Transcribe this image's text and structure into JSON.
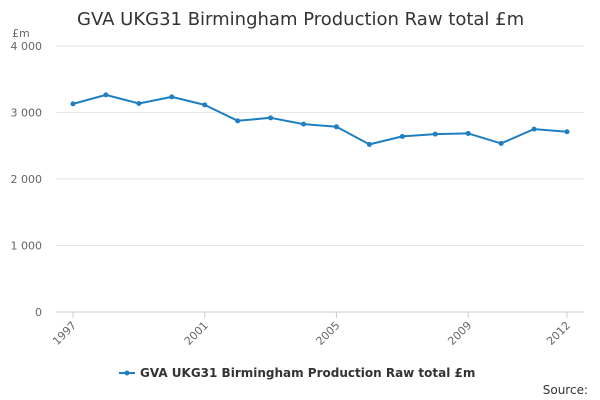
{
  "chart_data": {
    "type": "line",
    "title": "GVA UKG31 Birmingham Production Raw total £m",
    "unit_label": "£m",
    "xlabel": "",
    "ylabel": "£m",
    "ylim": [
      0,
      4000
    ],
    "yticks": [
      0,
      1000,
      2000,
      3000,
      4000
    ],
    "ytick_labels": [
      "0",
      "1 000",
      "2 000",
      "3 000",
      "4 000"
    ],
    "x": [
      1997,
      1998,
      1999,
      2000,
      2001,
      2002,
      2003,
      2004,
      2005,
      2006,
      2007,
      2008,
      2009,
      2010,
      2011,
      2012
    ],
    "xtick_labels": [
      "1997",
      "2001",
      "2005",
      "2009",
      "2012"
    ],
    "series": [
      {
        "name": "GVA UKG31 Birmingham Production Raw total £m",
        "color": "#1f7fc0",
        "values": [
          3130,
          3265,
          3135,
          3235,
          3115,
          2875,
          2920,
          2825,
          2785,
          2520,
          2640,
          2675,
          2685,
          2535,
          2750,
          2710
        ]
      }
    ],
    "grid": true,
    "legend": "bottom-center",
    "source_label": "Source:"
  }
}
